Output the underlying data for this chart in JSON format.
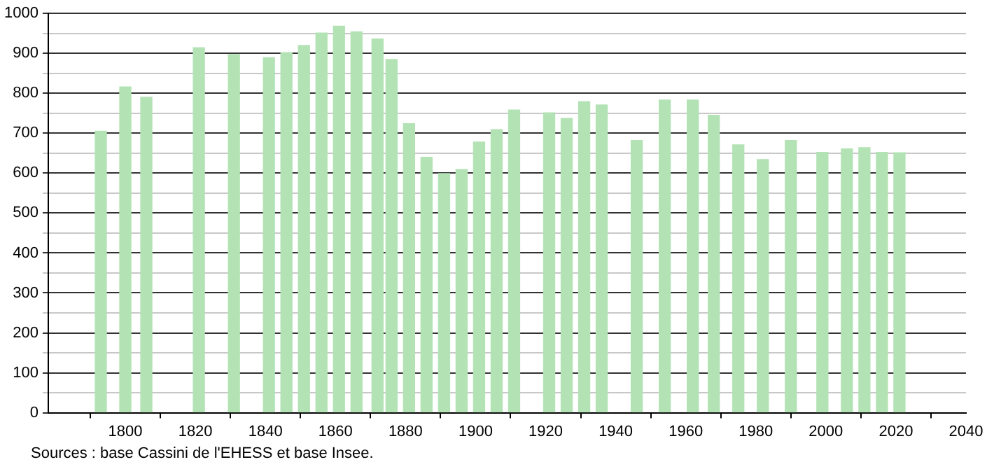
{
  "chart_data": {
    "type": "bar",
    "x": [
      1793,
      1800,
      1806,
      1821,
      1831,
      1841,
      1846,
      1851,
      1856,
      1861,
      1866,
      1872,
      1876,
      1881,
      1886,
      1891,
      1896,
      1901,
      1906,
      1911,
      1921,
      1926,
      1931,
      1936,
      1946,
      1954,
      1962,
      1968,
      1975,
      1982,
      1990,
      1999,
      2006,
      2011,
      2016,
      2021
    ],
    "values": [
      705,
      816,
      790,
      914,
      897,
      889,
      902,
      920,
      951,
      968,
      954,
      936,
      885,
      724,
      640,
      599,
      609,
      678,
      709,
      758,
      751,
      737,
      779,
      771,
      682,
      783,
      783,
      745,
      671,
      634,
      682,
      652,
      661,
      664,
      652,
      651
    ],
    "color": "#b3e3b5",
    "xlim": [
      1778,
      2040
    ],
    "xticks": [
      1800,
      1820,
      1840,
      1860,
      1880,
      1900,
      1920,
      1940,
      1960,
      1980,
      2000,
      2020,
      2040
    ],
    "ylim": [
      0,
      1000
    ],
    "yticks": [
      0,
      {
        "value": 50,
        "label": null
      },
      100,
      {
        "value": 150,
        "label": null
      },
      200,
      {
        "value": 250,
        "label": null
      },
      300,
      {
        "value": 350,
        "label": null
      },
      400,
      {
        "value": 450,
        "label": null
      },
      500,
      {
        "value": 550,
        "label": null
      },
      600,
      {
        "value": 650,
        "label": null
      },
      700,
      {
        "value": 750,
        "label": null
      },
      800,
      {
        "value": 850,
        "label": null
      },
      900,
      {
        "value": 950,
        "label": null
      },
      1000
    ],
    "grid": "y",
    "legend": false,
    "annotations": [
      "Sources : base Cassini de l'EHESS et base Insee."
    ]
  }
}
